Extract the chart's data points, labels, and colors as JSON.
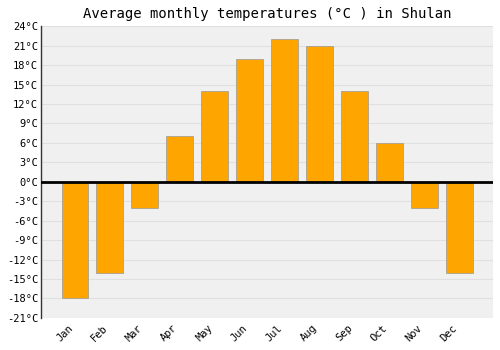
{
  "title": "Average monthly temperatures (°C ) in Shulan",
  "months": [
    "Jan",
    "Feb",
    "Mar",
    "Apr",
    "May",
    "Jun",
    "Jul",
    "Aug",
    "Sep",
    "Oct",
    "Nov",
    "Dec"
  ],
  "values": [
    -18,
    -14,
    -4,
    7,
    14,
    19,
    22,
    21,
    14,
    6,
    -4,
    -14
  ],
  "bar_color": "#FFA500",
  "bar_edge_color": "#999999",
  "ylim": [
    -21,
    24
  ],
  "yticks": [
    -21,
    -18,
    -15,
    -12,
    -9,
    -6,
    -3,
    0,
    3,
    6,
    9,
    12,
    15,
    18,
    21,
    24
  ],
  "ytick_labels": [
    "-21°C",
    "-18°C",
    "-15°C",
    "-12°C",
    "-9°C",
    "-6°C",
    "-3°C",
    "0°C",
    "3°C",
    "6°C",
    "9°C",
    "12°C",
    "15°C",
    "18°C",
    "21°C",
    "24°C"
  ],
  "background_color": "#ffffff",
  "plot_bg_color": "#f0f0f0",
  "grid_color": "#e0e0e0",
  "zero_line_color": "#000000",
  "title_fontsize": 10,
  "tick_fontsize": 7.5,
  "bar_width": 0.75
}
